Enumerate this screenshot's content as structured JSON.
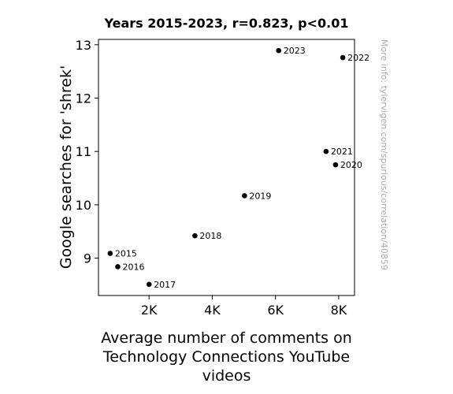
{
  "chart_data": {
    "type": "scatter",
    "title": "Years 2015-2023, r=0.823, p<0.01",
    "xlabel": "Average number of comments on Technology Connections YouTube videos",
    "ylabel": "Google searches for 'shrek'",
    "watermark": "More info: tylervigen.com/spurious/correlation/40859",
    "xlim": [
      400,
      8500
    ],
    "ylim": [
      8.3,
      13.1
    ],
    "x_ticks": [
      2000,
      4000,
      6000,
      8000
    ],
    "x_tick_labels": [
      "2K",
      "4K",
      "6K",
      "8K"
    ],
    "y_ticks": [
      9,
      10,
      11,
      12,
      13
    ],
    "y_tick_labels": [
      "9",
      "10",
      "11",
      "12",
      "13"
    ],
    "grid": false,
    "point_color": "#000000",
    "points": [
      {
        "label": "2015",
        "x": 770,
        "y": 9.09
      },
      {
        "label": "2016",
        "x": 1010,
        "y": 8.84
      },
      {
        "label": "2017",
        "x": 2000,
        "y": 8.51
      },
      {
        "label": "2018",
        "x": 3450,
        "y": 9.42
      },
      {
        "label": "2019",
        "x": 5020,
        "y": 10.17
      },
      {
        "label": "2020",
        "x": 7900,
        "y": 10.75
      },
      {
        "label": "2021",
        "x": 7600,
        "y": 11.0
      },
      {
        "label": "2022",
        "x": 8130,
        "y": 12.76
      },
      {
        "label": "2023",
        "x": 6100,
        "y": 12.89
      }
    ]
  }
}
